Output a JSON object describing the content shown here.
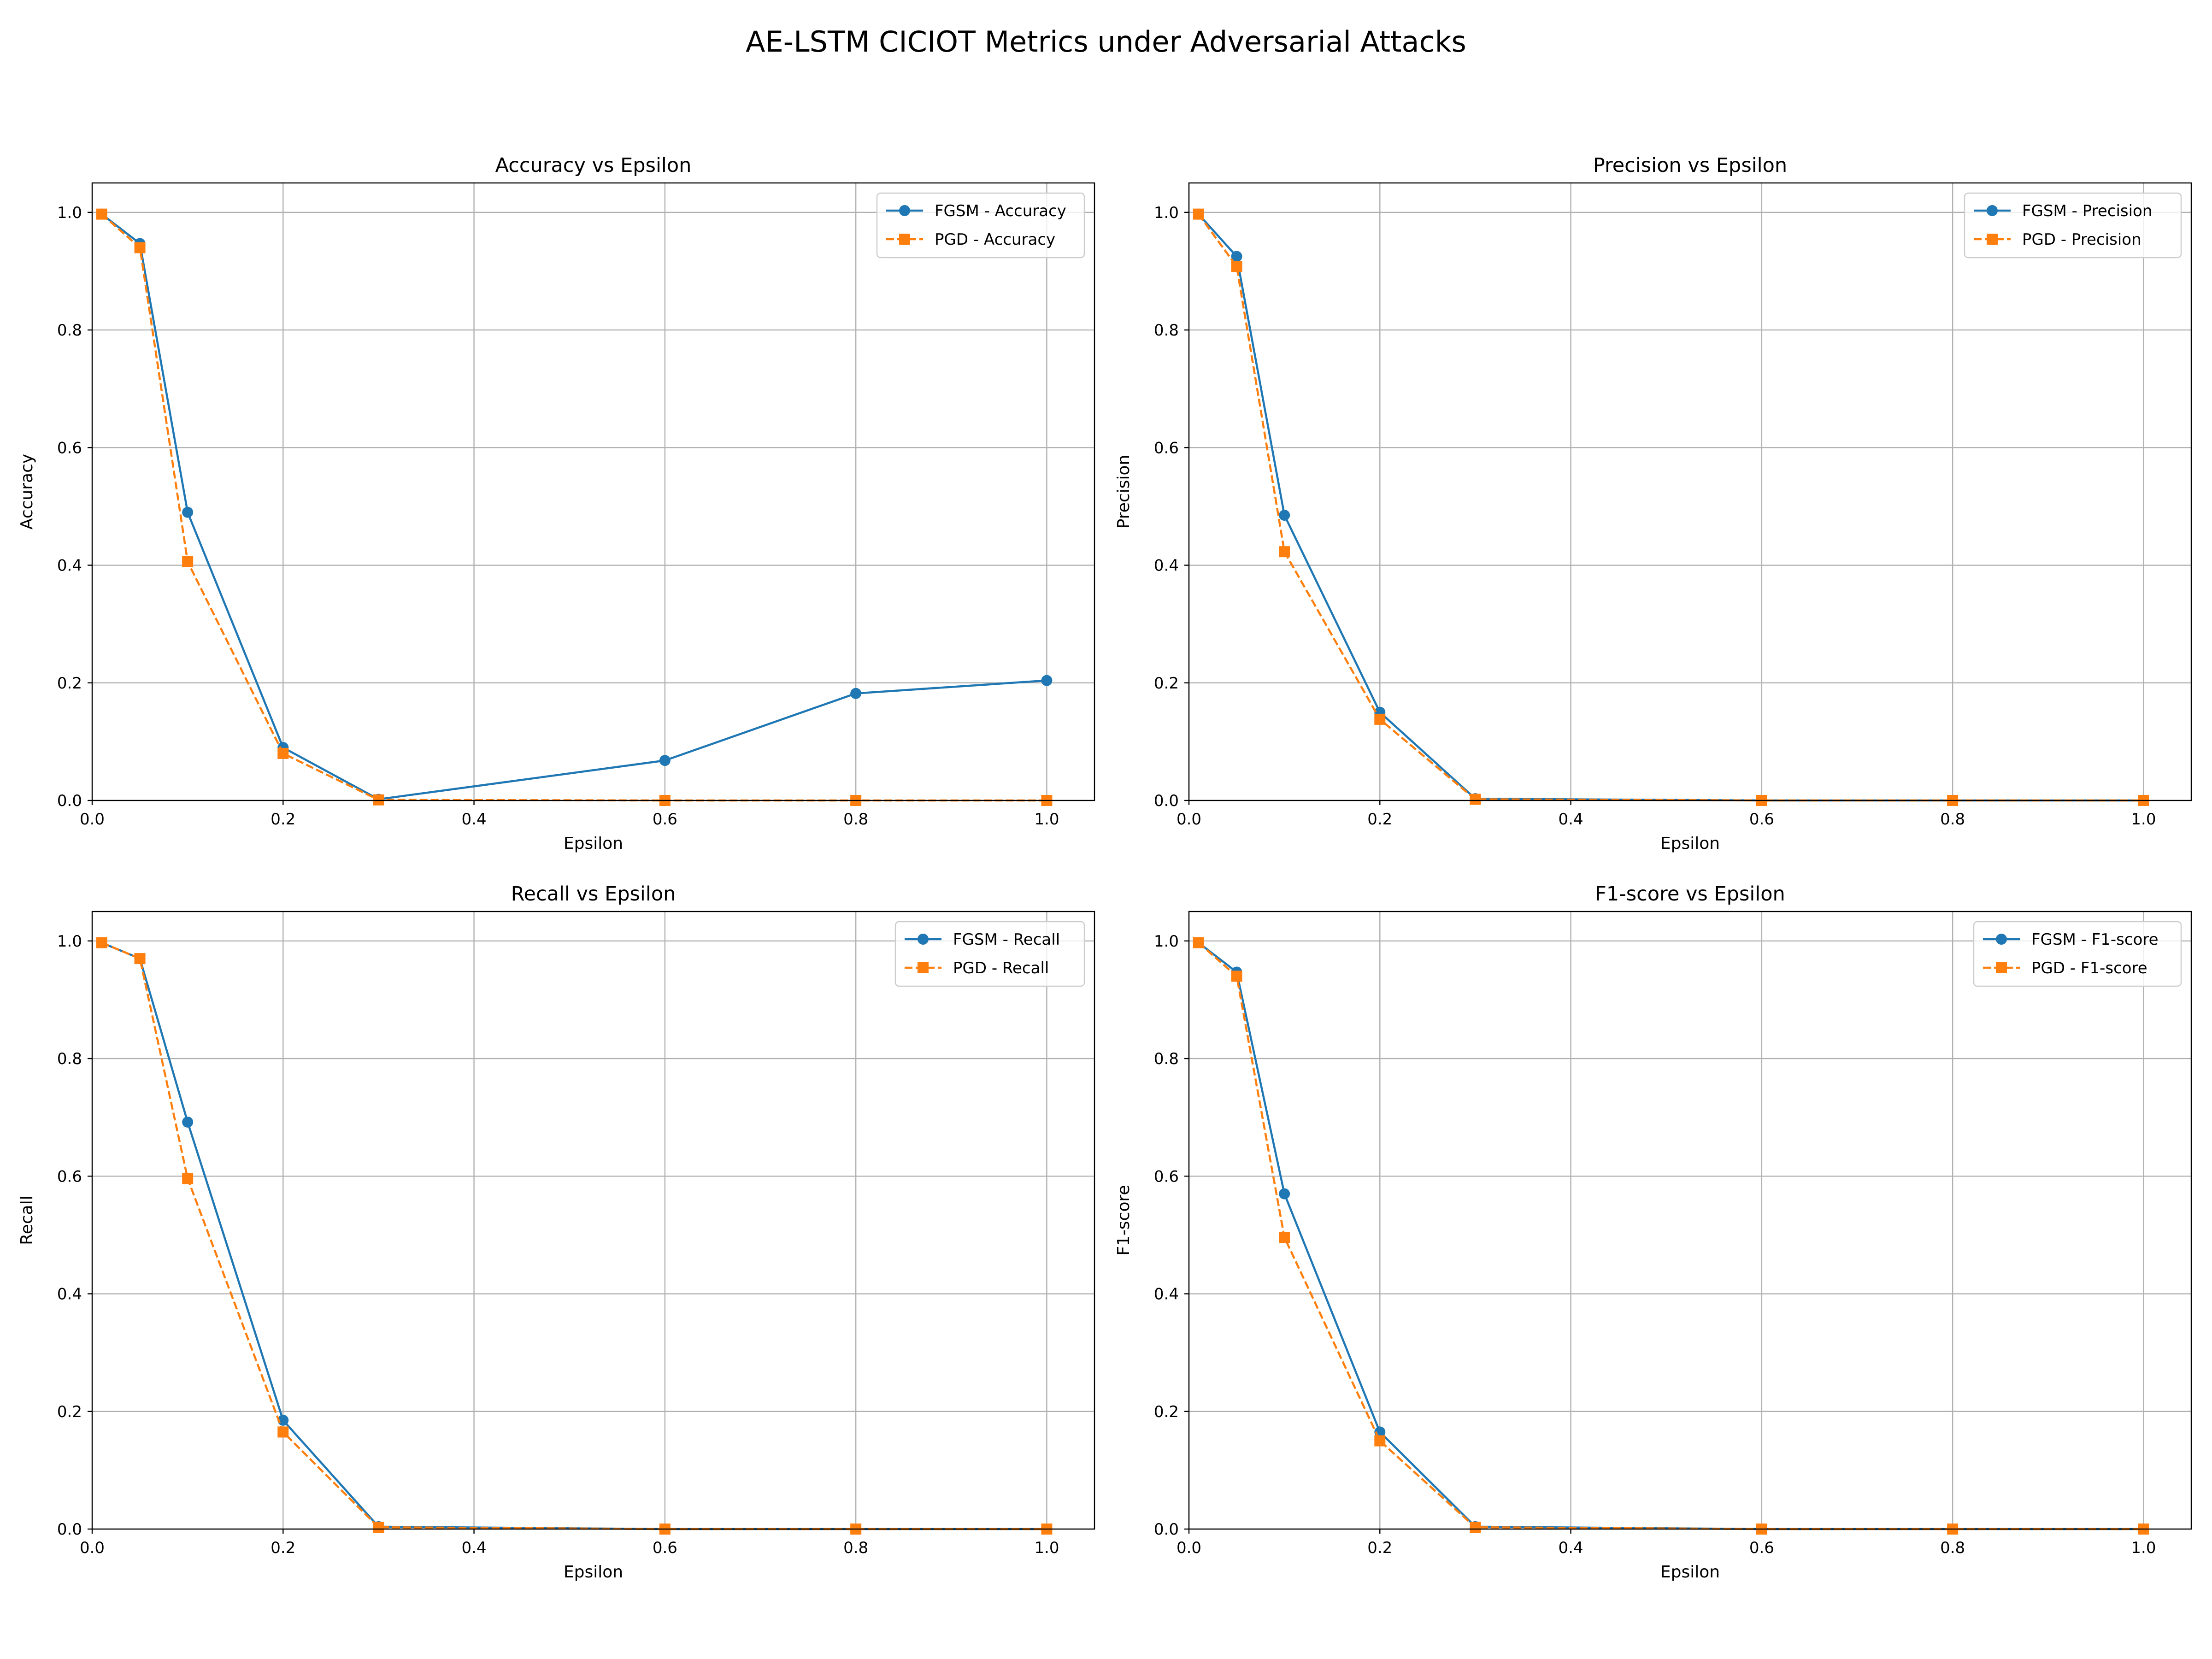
{
  "figure": {
    "suptitle": "AE-LSTM CICIOT Metrics under Adversarial Attacks"
  },
  "chart_data": [
    {
      "type": "line",
      "title": "Accuracy vs Epsilon",
      "xlabel": "Epsilon",
      "ylabel": "Accuracy",
      "xlim": [
        0,
        1.05
      ],
      "ylim": [
        0,
        1.05
      ],
      "xticks": [
        "0.0",
        "0.2",
        "0.4",
        "0.6",
        "0.8",
        "1.0"
      ],
      "yticks": [
        "0.0",
        "0.2",
        "0.4",
        "0.6",
        "0.8",
        "1.0"
      ],
      "grid": true,
      "legend_position": "top-right",
      "x": [
        0.01,
        0.05,
        0.1,
        0.2,
        0.3,
        0.6,
        0.8,
        1.0
      ],
      "series": [
        {
          "name": "FGSM - Accuracy",
          "color": "#1f77b4",
          "marker": "circle",
          "linestyle": "solid",
          "values": [
            0.997,
            0.947,
            0.49,
            0.09,
            0.002,
            0.068,
            0.182,
            0.204
          ]
        },
        {
          "name": "PGD - Accuracy",
          "color": "#ff7f0e",
          "marker": "square",
          "linestyle": "dashed",
          "values": [
            0.997,
            0.94,
            0.406,
            0.08,
            0.001,
            0.0,
            0.0,
            0.0
          ]
        }
      ]
    },
    {
      "type": "line",
      "title": "Precision vs Epsilon",
      "xlabel": "Epsilon",
      "ylabel": "Precision",
      "xlim": [
        0,
        1.05
      ],
      "ylim": [
        0,
        1.05
      ],
      "xticks": [
        "0.0",
        "0.2",
        "0.4",
        "0.6",
        "0.8",
        "1.0"
      ],
      "yticks": [
        "0.0",
        "0.2",
        "0.4",
        "0.6",
        "0.8",
        "1.0"
      ],
      "grid": true,
      "legend_position": "top-right",
      "x": [
        0.01,
        0.05,
        0.1,
        0.2,
        0.3,
        0.6,
        0.8,
        1.0
      ],
      "series": [
        {
          "name": "FGSM - Precision",
          "color": "#1f77b4",
          "marker": "circle",
          "linestyle": "solid",
          "values": [
            0.997,
            0.925,
            0.485,
            0.15,
            0.003,
            0.0,
            0.0,
            0.0
          ]
        },
        {
          "name": "PGD - Precision",
          "color": "#ff7f0e",
          "marker": "square",
          "linestyle": "dashed",
          "values": [
            0.997,
            0.908,
            0.423,
            0.138,
            0.002,
            0.0,
            0.0,
            0.0
          ]
        }
      ]
    },
    {
      "type": "line",
      "title": "Recall vs Epsilon",
      "xlabel": "Epsilon",
      "ylabel": "Recall",
      "xlim": [
        0,
        1.05
      ],
      "ylim": [
        0,
        1.05
      ],
      "xticks": [
        "0.0",
        "0.2",
        "0.4",
        "0.6",
        "0.8",
        "1.0"
      ],
      "yticks": [
        "0.0",
        "0.2",
        "0.4",
        "0.6",
        "0.8",
        "1.0"
      ],
      "grid": true,
      "legend_position": "top-right",
      "x": [
        0.01,
        0.05,
        0.1,
        0.2,
        0.3,
        0.6,
        0.8,
        1.0
      ],
      "series": [
        {
          "name": "FGSM - Recall",
          "color": "#1f77b4",
          "marker": "circle",
          "linestyle": "solid",
          "values": [
            0.997,
            0.97,
            0.692,
            0.185,
            0.004,
            0.0,
            0.0,
            0.0
          ]
        },
        {
          "name": "PGD - Recall",
          "color": "#ff7f0e",
          "marker": "square",
          "linestyle": "dashed",
          "values": [
            0.997,
            0.97,
            0.596,
            0.165,
            0.003,
            0.0,
            0.0,
            0.0
          ]
        }
      ]
    },
    {
      "type": "line",
      "title": "F1-score vs Epsilon",
      "xlabel": "Epsilon",
      "ylabel": "F1-score",
      "xlim": [
        0,
        1.05
      ],
      "ylim": [
        0,
        1.05
      ],
      "xticks": [
        "0.0",
        "0.2",
        "0.4",
        "0.6",
        "0.8",
        "1.0"
      ],
      "yticks": [
        "0.0",
        "0.2",
        "0.4",
        "0.6",
        "0.8",
        "1.0"
      ],
      "grid": true,
      "legend_position": "top-right",
      "x": [
        0.01,
        0.05,
        0.1,
        0.2,
        0.3,
        0.6,
        0.8,
        1.0
      ],
      "series": [
        {
          "name": "FGSM - F1-score",
          "color": "#1f77b4",
          "marker": "circle",
          "linestyle": "solid",
          "values": [
            0.997,
            0.947,
            0.57,
            0.165,
            0.004,
            0.0,
            0.0,
            0.0
          ]
        },
        {
          "name": "PGD - F1-score",
          "color": "#ff7f0e",
          "marker": "square",
          "linestyle": "dashed",
          "values": [
            0.997,
            0.94,
            0.496,
            0.15,
            0.003,
            0.0,
            0.0,
            0.0
          ]
        }
      ]
    }
  ]
}
